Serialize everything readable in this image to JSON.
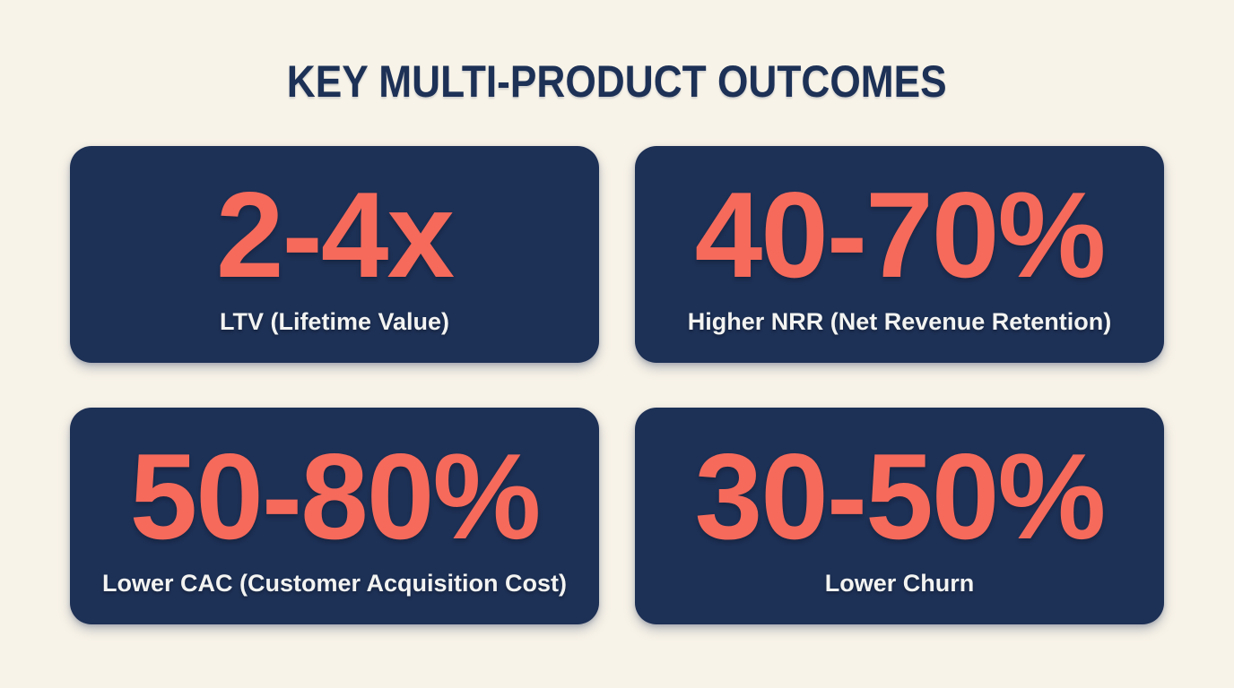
{
  "title": "KEY MULTI-PRODUCT OUTCOMES",
  "colors": {
    "background": "#f8f3e8",
    "card": "#1d3055",
    "accent": "#f56a5b",
    "titlecolor": "#1d3156",
    "labelcolor": "#f3f4f2"
  },
  "cards": [
    {
      "value": "2-4x",
      "label": "LTV (Lifetime Value)"
    },
    {
      "value": "40-70%",
      "label": "Higher NRR (Net Revenue Retention)"
    },
    {
      "value": "50-80%",
      "label": "Lower CAC (Customer Acquisition Cost)"
    },
    {
      "value": "30-50%",
      "label": "Lower Churn"
    }
  ]
}
